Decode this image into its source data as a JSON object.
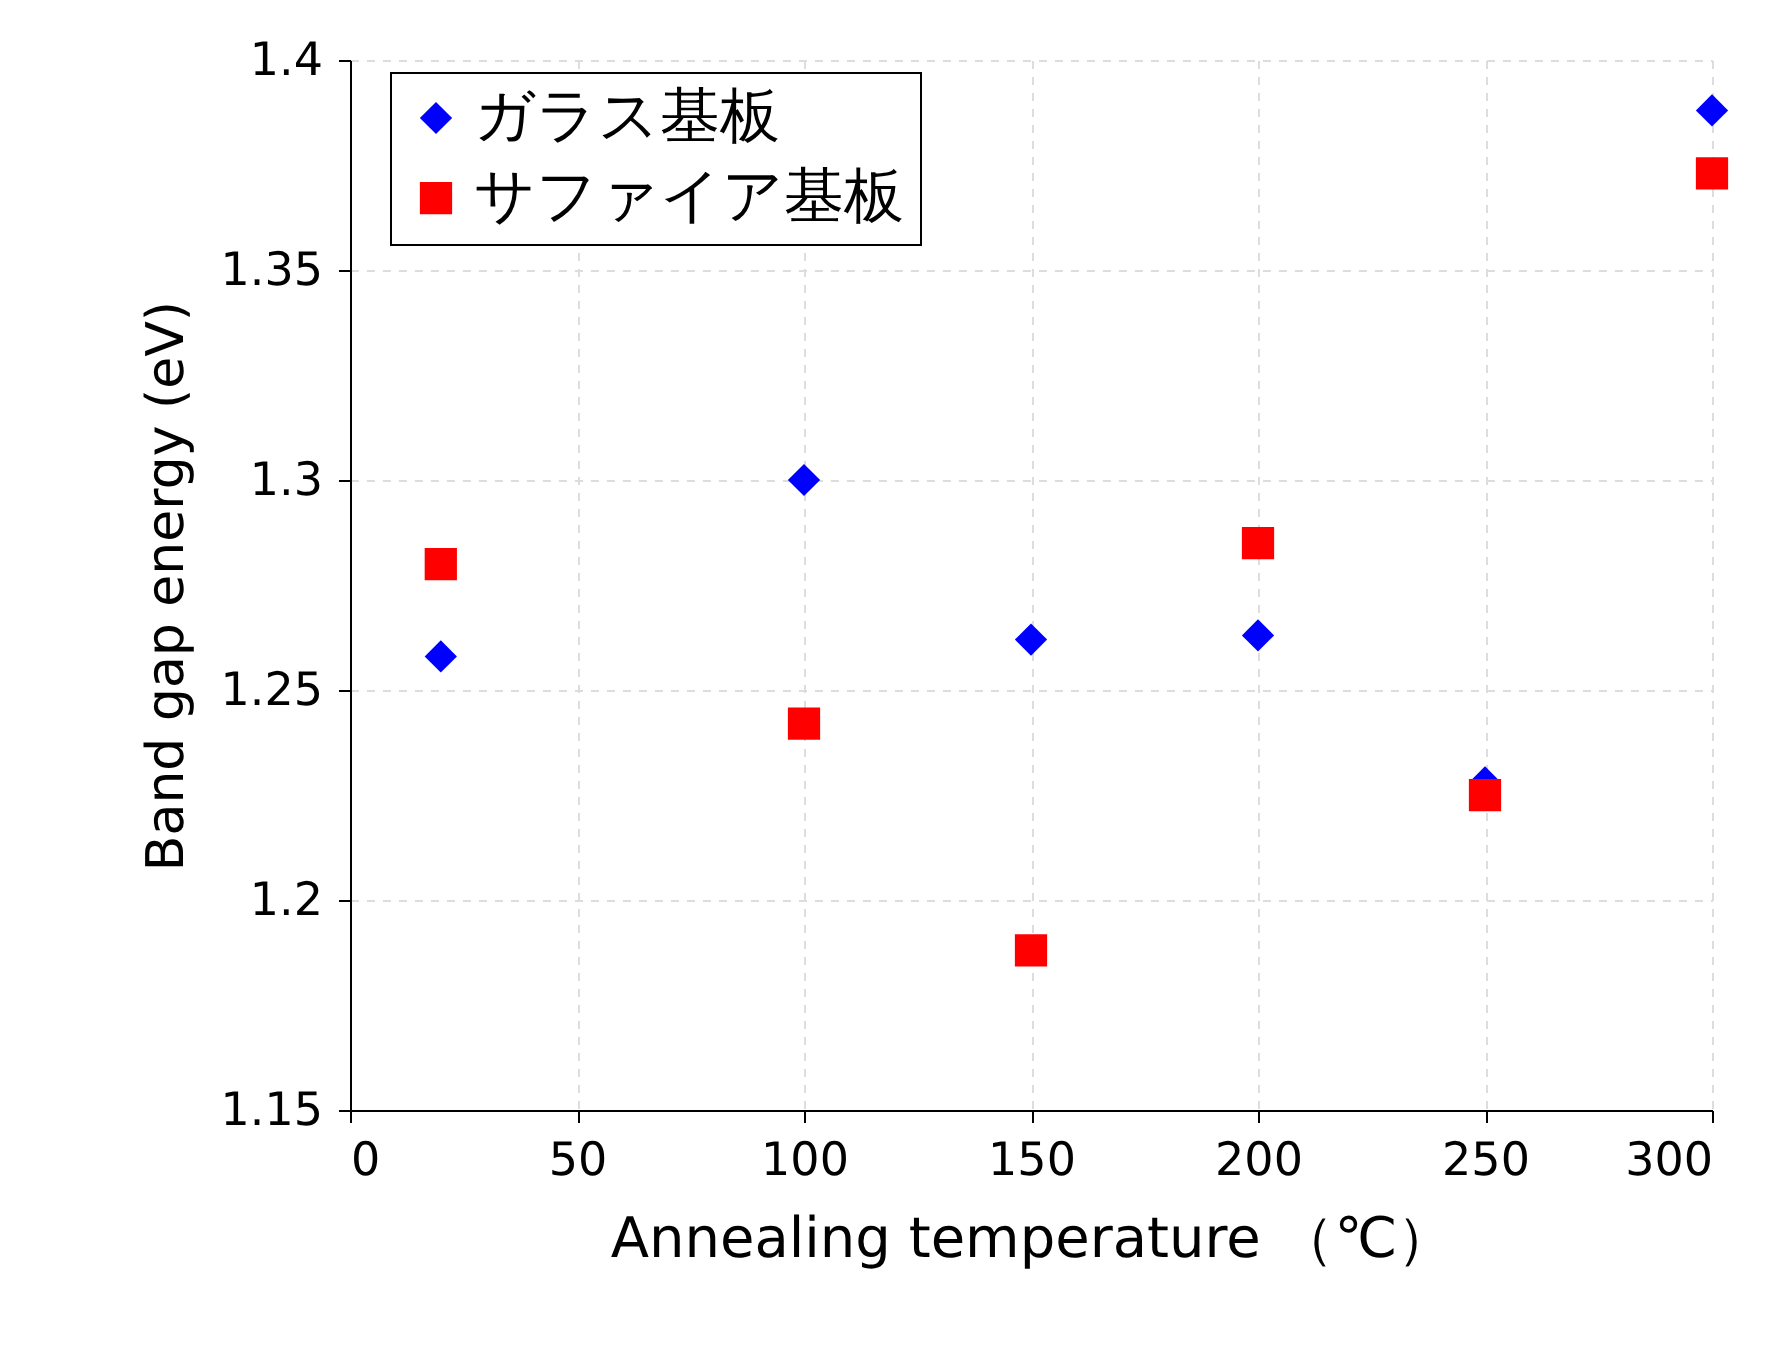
{
  "chart_data": {
    "type": "scatter",
    "xlabel": "Annealing temperature （℃）",
    "ylabel": "Band gap energy (eV)",
    "x": [
      20,
      100,
      150,
      200,
      250,
      300
    ],
    "series": [
      {
        "name": "ガラス基板",
        "color": "#0000ff",
        "marker": "diamond",
        "values": [
          1.258,
          1.3,
          1.262,
          1.263,
          1.228,
          1.388
        ]
      },
      {
        "name": "サファイア基板",
        "color": "#ff0000",
        "marker": "square",
        "values": [
          1.28,
          1.242,
          1.188,
          1.285,
          1.225,
          1.373
        ]
      }
    ],
    "xlim": [
      0,
      300
    ],
    "xticks": [
      0,
      50,
      100,
      150,
      200,
      250,
      300
    ],
    "ylim": [
      1.15,
      1.4
    ],
    "yticks": [
      1.15,
      1.2,
      1.25,
      1.3,
      1.35,
      1.4
    ],
    "grid": true,
    "legend": "top left"
  }
}
